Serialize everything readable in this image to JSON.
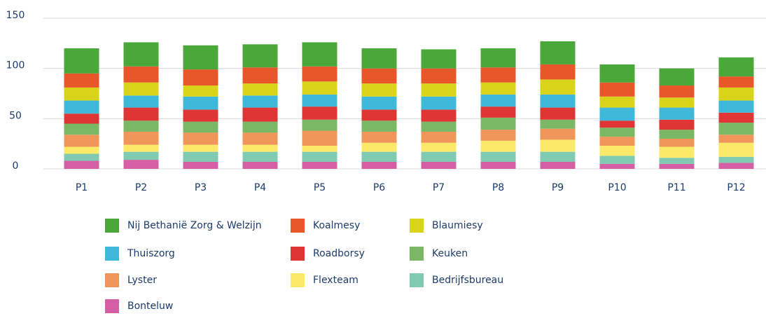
{
  "chart_data": {
    "type": "stacked_bar",
    "categories": [
      "P1",
      "P2",
      "P3",
      "P4",
      "P5",
      "P6",
      "P7",
      "P8",
      "P9",
      "P10",
      "P11",
      "P12"
    ],
    "ylim": [
      0,
      150
    ],
    "yticks": [
      0,
      50,
      100,
      150
    ],
    "grid": true,
    "series": [
      {
        "name": "Nij Bethanië Zorg & Welzijn",
        "color": "#4aa83a",
        "values": [
          25,
          24,
          24,
          23,
          24,
          20,
          19,
          19,
          23,
          18,
          17,
          19
        ]
      },
      {
        "name": "Koalmesy",
        "color": "#e8572a",
        "values": [
          14,
          16,
          16,
          16,
          15,
          15,
          15,
          15,
          15,
          14,
          12,
          11
        ]
      },
      {
        "name": "Blaumiesy",
        "color": "#d9d41a",
        "values": [
          13,
          13,
          11,
          12,
          13,
          13,
          13,
          12,
          15,
          11,
          10,
          13
        ]
      },
      {
        "name": "Thuiszorg",
        "color": "#3fb9d9",
        "values": [
          13,
          12,
          13,
          12,
          12,
          13,
          13,
          12,
          13,
          13,
          12,
          12
        ]
      },
      {
        "name": "Roadborsy",
        "color": "#e03535",
        "values": [
          10,
          13,
          12,
          14,
          13,
          11,
          12,
          11,
          12,
          7,
          10,
          10
        ]
      },
      {
        "name": "Keuken",
        "color": "#7ab865",
        "values": [
          11,
          11,
          11,
          11,
          11,
          11,
          10,
          12,
          9,
          9,
          9,
          12
        ]
      },
      {
        "name": "Lyster",
        "color": "#f0965a",
        "values": [
          12,
          13,
          12,
          12,
          15,
          11,
          11,
          11,
          11,
          9,
          8,
          8
        ]
      },
      {
        "name": "Flexteam",
        "color": "#fbe96a",
        "values": [
          7,
          7,
          7,
          7,
          6,
          9,
          9,
          11,
          12,
          10,
          11,
          14
        ]
      },
      {
        "name": "Bedrijfsbureau",
        "color": "#7fcab0",
        "values": [
          7,
          8,
          10,
          10,
          10,
          10,
          10,
          10,
          10,
          8,
          6,
          6
        ]
      },
      {
        "name": "Bonteluw",
        "color": "#d45fa5",
        "values": [
          8,
          9,
          7,
          7,
          7,
          7,
          7,
          7,
          7,
          5,
          5,
          6
        ]
      }
    ]
  }
}
